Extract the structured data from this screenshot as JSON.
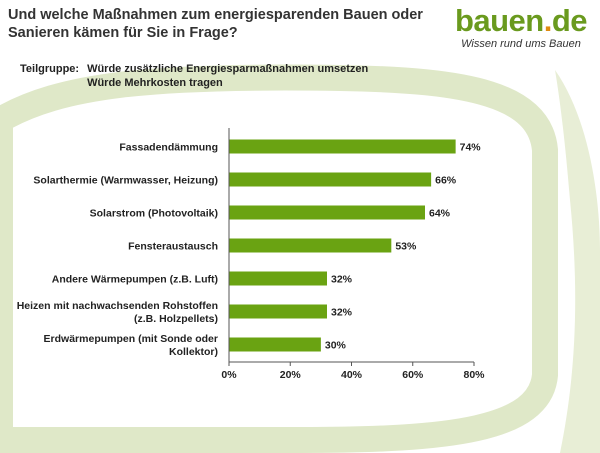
{
  "title": "Und welche Maßnahmen zum energiesparenden Bauen oder Sanieren kämen für Sie in Frage?",
  "logo": {
    "word": "bauen",
    "dot": ".",
    "tld": "de",
    "tagline": "Wissen rund ums Bauen"
  },
  "subgroup": {
    "label": "Teilgruppe:",
    "lines": [
      "Würde zusätzliche Energiesparmaßnahmen umsetzen",
      "Würde Mehrkosten tragen"
    ]
  },
  "colors": {
    "bar": "#6aa312",
    "accent_green": "#6a9a1e",
    "accent_orange": "#e08a10",
    "swoosh": "#dfe8c8"
  },
  "chart_data": {
    "type": "bar",
    "orientation": "horizontal",
    "categories": [
      [
        "Fassadendämmung"
      ],
      [
        "Solarthermie (Warmwasser, Heizung)"
      ],
      [
        "Solarstrom (Photovoltaik)"
      ],
      [
        "Fensteraustausch"
      ],
      [
        "Andere Wärmepumpen (z.B. Luft)"
      ],
      [
        "Heizen mit nachwachsenden Rohstoffen",
        "(z.B. Holzpellets)"
      ],
      [
        "Erdwärmepumpen (mit Sonde oder",
        "Kollektor)"
      ]
    ],
    "values": [
      74,
      66,
      64,
      53,
      32,
      32,
      30
    ],
    "value_labels": [
      "74%",
      "66%",
      "64%",
      "53%",
      "32%",
      "32%",
      "30%"
    ],
    "xlim": [
      0,
      80
    ],
    "ticks": [
      0,
      20,
      40,
      60,
      80
    ],
    "tick_labels": [
      "0%",
      "20%",
      "40%",
      "60%",
      "80%"
    ],
    "grid": false,
    "legend": "none"
  }
}
